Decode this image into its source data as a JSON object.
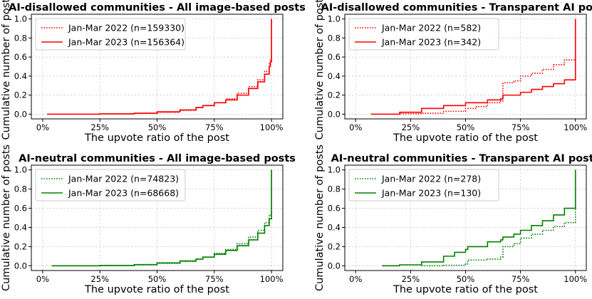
{
  "chart_data": [
    {
      "type": "line",
      "title": "AI-disallowed communities - All image-based posts",
      "xlabel": "The upvote ratio of the post",
      "ylabel": "Cumulative number of posts",
      "xlim": [
        0.0,
        1.0
      ],
      "ylim": [
        0.0,
        1.0
      ],
      "x_ticks": [
        "0%",
        "25%",
        "50%",
        "75%",
        "100%"
      ],
      "y_ticks": [
        "0.0",
        "0.2",
        "0.4",
        "0.6",
        "0.8",
        "1.0"
      ],
      "grid": true,
      "legend": "top-left",
      "color": "#ff0000",
      "series": [
        {
          "name": "Jan-Mar 2022 (n=159330)",
          "style": "dotted",
          "points": [
            [
              0.02,
              0.0
            ],
            [
              0.25,
              0.003
            ],
            [
              0.4,
              0.01
            ],
            [
              0.5,
              0.02
            ],
            [
              0.6,
              0.04
            ],
            [
              0.67,
              0.07
            ],
            [
              0.7,
              0.09
            ],
            [
              0.75,
              0.12
            ],
            [
              0.8,
              0.16
            ],
            [
              0.85,
              0.22
            ],
            [
              0.9,
              0.29
            ],
            [
              0.94,
              0.36
            ],
            [
              0.97,
              0.45
            ],
            [
              0.99,
              0.53
            ],
            [
              0.995,
              0.58
            ],
            [
              1.0,
              1.0
            ]
          ]
        },
        {
          "name": "Jan-Mar 2023 (n=156364)",
          "style": "solid",
          "points": [
            [
              0.02,
              0.0
            ],
            [
              0.25,
              0.003
            ],
            [
              0.4,
              0.01
            ],
            [
              0.5,
              0.025
            ],
            [
              0.6,
              0.045
            ],
            [
              0.67,
              0.07
            ],
            [
              0.7,
              0.09
            ],
            [
              0.75,
              0.12
            ],
            [
              0.8,
              0.15
            ],
            [
              0.85,
              0.2
            ],
            [
              0.9,
              0.27
            ],
            [
              0.94,
              0.34
            ],
            [
              0.97,
              0.42
            ],
            [
              0.99,
              0.5
            ],
            [
              0.995,
              0.55
            ],
            [
              1.0,
              1.0
            ]
          ]
        }
      ]
    },
    {
      "type": "line",
      "title": "AI-disallowed communities - Transparent AI posts",
      "xlabel": "The upvote ratio of the post",
      "ylabel": "Cumulative number of posts",
      "xlim": [
        0.0,
        1.0
      ],
      "ylim": [
        0.0,
        1.0
      ],
      "x_ticks": [
        "0%",
        "25%",
        "50%",
        "75%",
        "100%"
      ],
      "y_ticks": [
        "0.0",
        "0.2",
        "0.4",
        "0.6",
        "0.8",
        "1.0"
      ],
      "grid": true,
      "legend": "top-left",
      "color": "#ff0000",
      "series": [
        {
          "name": "Jan-Mar 2022 (n=582)",
          "style": "dotted",
          "points": [
            [
              0.07,
              0.0
            ],
            [
              0.2,
              0.005
            ],
            [
              0.3,
              0.01
            ],
            [
              0.4,
              0.03
            ],
            [
              0.5,
              0.06
            ],
            [
              0.55,
              0.08
            ],
            [
              0.6,
              0.12
            ],
            [
              0.66,
              0.14
            ],
            [
              0.67,
              0.33
            ],
            [
              0.72,
              0.35
            ],
            [
              0.75,
              0.4
            ],
            [
              0.8,
              0.43
            ],
            [
              0.85,
              0.47
            ],
            [
              0.9,
              0.52
            ],
            [
              0.95,
              0.57
            ],
            [
              1.0,
              0.63
            ],
            [
              1.0,
              1.0
            ]
          ]
        },
        {
          "name": "Jan-Mar 2023 (n=342)",
          "style": "solid",
          "points": [
            [
              0.07,
              0.0
            ],
            [
              0.2,
              0.02
            ],
            [
              0.3,
              0.06
            ],
            [
              0.4,
              0.09
            ],
            [
              0.5,
              0.12
            ],
            [
              0.6,
              0.15
            ],
            [
              0.66,
              0.16
            ],
            [
              0.67,
              0.2
            ],
            [
              0.75,
              0.23
            ],
            [
              0.8,
              0.26
            ],
            [
              0.85,
              0.29
            ],
            [
              0.9,
              0.32
            ],
            [
              0.95,
              0.36
            ],
            [
              1.0,
              0.39
            ],
            [
              1.0,
              1.0
            ]
          ]
        }
      ]
    },
    {
      "type": "line",
      "title": "AI-neutral communities - All image-based posts",
      "xlabel": "The upvote ratio of the post",
      "ylabel": "Cumulative number of posts",
      "xlim": [
        0.0,
        1.0
      ],
      "ylim": [
        0.0,
        1.0
      ],
      "x_ticks": [
        "0%",
        "25%",
        "50%",
        "75%",
        "100%"
      ],
      "y_ticks": [
        "0.0",
        "0.2",
        "0.4",
        "0.6",
        "0.8",
        "1.0"
      ],
      "grid": true,
      "legend": "top-left",
      "color": "#008000",
      "series": [
        {
          "name": "Jan-Mar 2022 (n=74823)",
          "style": "dotted",
          "points": [
            [
              0.04,
              0.0
            ],
            [
              0.25,
              0.003
            ],
            [
              0.4,
              0.01
            ],
            [
              0.5,
              0.025
            ],
            [
              0.6,
              0.045
            ],
            [
              0.67,
              0.07
            ],
            [
              0.7,
              0.09
            ],
            [
              0.75,
              0.13
            ],
            [
              0.8,
              0.17
            ],
            [
              0.85,
              0.23
            ],
            [
              0.9,
              0.3
            ],
            [
              0.94,
              0.37
            ],
            [
              0.97,
              0.45
            ],
            [
              0.99,
              0.53
            ],
            [
              1.0,
              0.58
            ],
            [
              1.0,
              1.0
            ]
          ]
        },
        {
          "name": "Jan-Mar 2023 (n=68668)",
          "style": "solid",
          "points": [
            [
              0.04,
              0.0
            ],
            [
              0.25,
              0.003
            ],
            [
              0.4,
              0.012
            ],
            [
              0.5,
              0.03
            ],
            [
              0.6,
              0.05
            ],
            [
              0.67,
              0.07
            ],
            [
              0.7,
              0.09
            ],
            [
              0.75,
              0.12
            ],
            [
              0.8,
              0.16
            ],
            [
              0.85,
              0.21
            ],
            [
              0.9,
              0.27
            ],
            [
              0.94,
              0.34
            ],
            [
              0.97,
              0.42
            ],
            [
              0.99,
              0.49
            ],
            [
              1.0,
              0.54
            ],
            [
              1.0,
              1.0
            ]
          ]
        }
      ]
    },
    {
      "type": "line",
      "title": "AI-neutral communities - Transparent AI posts",
      "xlabel": "The upvote ratio of the post",
      "ylabel": "Cumulative number of posts",
      "xlim": [
        0.0,
        1.0
      ],
      "ylim": [
        0.0,
        1.0
      ],
      "x_ticks": [
        "0%",
        "25%",
        "50%",
        "75%",
        "100%"
      ],
      "y_ticks": [
        "0.0",
        "0.2",
        "0.4",
        "0.6",
        "0.8",
        "1.0"
      ],
      "grid": true,
      "legend": "top-left",
      "color": "#008000",
      "series": [
        {
          "name": "Jan-Mar 2022 (n=278)",
          "style": "dotted",
          "points": [
            [
              0.3,
              0.0
            ],
            [
              0.4,
              0.005
            ],
            [
              0.5,
              0.02
            ],
            [
              0.51,
              0.06
            ],
            [
              0.6,
              0.07
            ],
            [
              0.66,
              0.09
            ],
            [
              0.67,
              0.2
            ],
            [
              0.72,
              0.23
            ],
            [
              0.75,
              0.29
            ],
            [
              0.8,
              0.33
            ],
            [
              0.85,
              0.37
            ],
            [
              0.9,
              0.41
            ],
            [
              0.95,
              0.45
            ],
            [
              1.0,
              0.52
            ],
            [
              1.0,
              1.0
            ]
          ]
        },
        {
          "name": "Jan-Mar 2023 (n=130)",
          "style": "solid",
          "points": [
            [
              0.12,
              0.0
            ],
            [
              0.2,
              0.01
            ],
            [
              0.3,
              0.04
            ],
            [
              0.4,
              0.1
            ],
            [
              0.45,
              0.14
            ],
            [
              0.5,
              0.17
            ],
            [
              0.51,
              0.2
            ],
            [
              0.6,
              0.25
            ],
            [
              0.66,
              0.27
            ],
            [
              0.67,
              0.3
            ],
            [
              0.72,
              0.33
            ],
            [
              0.75,
              0.37
            ],
            [
              0.8,
              0.42
            ],
            [
              0.85,
              0.47
            ],
            [
              0.9,
              0.53
            ],
            [
              0.95,
              0.6
            ],
            [
              1.0,
              0.65
            ],
            [
              1.0,
              1.0
            ]
          ]
        }
      ]
    }
  ]
}
